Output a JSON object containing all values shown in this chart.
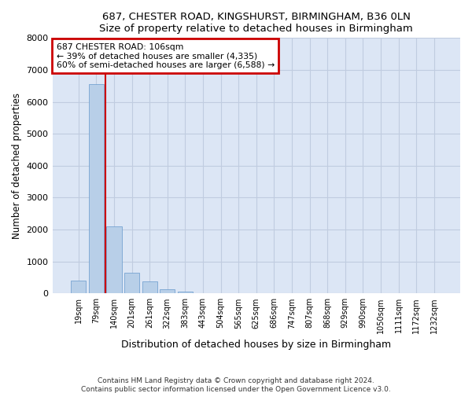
{
  "title1": "687, CHESTER ROAD, KINGSHURST, BIRMINGHAM, B36 0LN",
  "title2": "Size of property relative to detached houses in Birmingham",
  "xlabel": "Distribution of detached houses by size in Birmingham",
  "ylabel": "Number of detached properties",
  "footer1": "Contains HM Land Registry data © Crown copyright and database right 2024.",
  "footer2": "Contains public sector information licensed under the Open Government Licence v3.0.",
  "categories": [
    "19sqm",
    "79sqm",
    "140sqm",
    "201sqm",
    "261sqm",
    "322sqm",
    "383sqm",
    "443sqm",
    "504sqm",
    "565sqm",
    "625sqm",
    "686sqm",
    "747sqm",
    "807sqm",
    "868sqm",
    "929sqm",
    "990sqm",
    "1050sqm",
    "1111sqm",
    "1172sqm",
    "1232sqm"
  ],
  "values": [
    400,
    6550,
    2100,
    650,
    380,
    140,
    60,
    5,
    0,
    0,
    0,
    0,
    0,
    0,
    0,
    0,
    0,
    0,
    0,
    0,
    0
  ],
  "bar_color": "#b8cfe8",
  "bar_edge_color": "#6699cc",
  "property_line_x": 1.5,
  "annotation_text1": "687 CHESTER ROAD: 106sqm",
  "annotation_text2": "← 39% of detached houses are smaller (4,335)",
  "annotation_text3": "60% of semi-detached houses are larger (6,588) →",
  "annotation_box_color": "#ffffff",
  "annotation_border_color": "#cc0000",
  "vline_color": "#cc0000",
  "ylim": [
    0,
    8000
  ],
  "yticks": [
    0,
    1000,
    2000,
    3000,
    4000,
    5000,
    6000,
    7000,
    8000
  ],
  "grid_color": "#c0cce0",
  "bg_color": "#dce6f5"
}
